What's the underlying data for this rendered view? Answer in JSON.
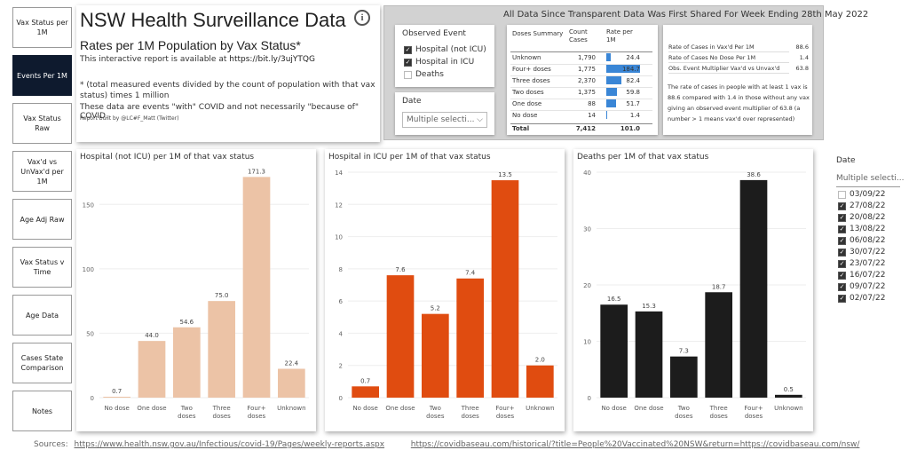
{
  "nav": [
    {
      "label": "Vax Status per 1M",
      "active": false
    },
    {
      "label": "Events Per 1M",
      "active": true
    },
    {
      "label": "Vax Status Raw",
      "active": false
    },
    {
      "label": "Vax'd vs UnVax'd per 1M",
      "active": false
    },
    {
      "label": "Age Adj Raw",
      "active": false
    },
    {
      "label": "Vax Status v Time",
      "active": false
    },
    {
      "label": "Age Data",
      "active": false
    },
    {
      "label": "Cases State Comparison",
      "active": false
    },
    {
      "label": "Notes",
      "active": false
    }
  ],
  "header": {
    "title": "NSW Health Surveillance Data",
    "info_icon": "i",
    "subtitle": "Rates per 1M Population by Vax Status*",
    "report_text": "This interactive report is available at",
    "report_link": "https://bit.ly/3ujYTQG",
    "note1": "* (total measured events divided by the count of population with that vax status) times 1 million",
    "note2": "These data are events \"with\" COVID and not necessarily \"because of\" COVID.",
    "credit": "Report built by @LC#F_Matt (Twitter)"
  },
  "summary": {
    "title": "All Data Since Transparent Data Was First Shared For Week Ending 28th May 2022",
    "event_slicer": {
      "label": "Observed Event",
      "options": [
        {
          "label": "Hospital (not ICU)",
          "checked": true
        },
        {
          "label": "Hospital in ICU",
          "checked": true
        },
        {
          "label": "Deaths",
          "checked": false
        }
      ]
    },
    "date_slicer": {
      "label": "Date",
      "value": "Multiple selecti...",
      "chevron": "⌵"
    },
    "doses_table": {
      "headers": [
        "Doses Summary",
        "Count Cases",
        "Rate per 1M"
      ],
      "rows": [
        {
          "label": "Unknown",
          "count": "1,790",
          "rate": "24.4",
          "rate_value": 24.4
        },
        {
          "label": "Four+ doses",
          "count": "1,775",
          "rate": "184.7",
          "rate_value": 184.7
        },
        {
          "label": "Three doses",
          "count": "2,370",
          "rate": "82.4",
          "rate_value": 82.4
        },
        {
          "label": "Two doses",
          "count": "1,375",
          "rate": "59.8",
          "rate_value": 59.8
        },
        {
          "label": "One dose",
          "count": "88",
          "rate": "51.7",
          "rate_value": 51.7
        },
        {
          "label": "No dose",
          "count": "14",
          "rate": "1.4",
          "rate_value": 1.4
        }
      ],
      "total": {
        "label": "Total",
        "count": "7,412",
        "rate": "101.0"
      }
    },
    "rates_table": {
      "rows": [
        {
          "label": "Rate of Cases in Vax'd Per 1M",
          "value": "88.6"
        },
        {
          "label": "Rate of Cases No Dose Per 1M",
          "value": "1.4"
        },
        {
          "label": "Obs. Event Multiplier Vax'd vs Unvax'd",
          "value": "63.8"
        }
      ],
      "text": "The rate of cases in people with at least 1 vax is 88.6 compared with 1.4 in those without any vax giving an observed event multiplier of 63.8 (a number > 1 means vax'd over represented)"
    }
  },
  "chart_data": [
    {
      "type": "bar",
      "title": "Hospital (not ICU) per 1M of that vax status",
      "categories": [
        "No dose",
        "One dose",
        "Two doses",
        "Three doses",
        "Four+ doses",
        "Unknown"
      ],
      "values": [
        0.7,
        44.0,
        54.6,
        75.0,
        171.3,
        22.4
      ],
      "labels": [
        "0.7",
        "44.0",
        "54.6",
        "75.0",
        "171.3",
        "22.4"
      ],
      "yticks": [
        0,
        50,
        100,
        150
      ],
      "ylim": [
        0,
        175
      ],
      "color": "#ecc3a6"
    },
    {
      "type": "bar",
      "title": "Hospital in ICU per 1M of that vax status",
      "categories": [
        "No dose",
        "One dose",
        "Two doses",
        "Three doses",
        "Four+ doses",
        "Unknown"
      ],
      "values": [
        0.7,
        7.6,
        5.2,
        7.4,
        13.5,
        2.0
      ],
      "labels": [
        "0.7",
        "7.6",
        "5.2",
        "7.4",
        "13.5",
        "2.0"
      ],
      "yticks": [
        0,
        2,
        4,
        6,
        8,
        10,
        12,
        14
      ],
      "ylim": [
        0,
        14
      ],
      "color": "#e04c10"
    },
    {
      "type": "bar",
      "title": "Deaths per 1M of that vax status",
      "categories": [
        "No dose",
        "One dose",
        "Two doses",
        "Three doses",
        "Four+ doses",
        "Unknown"
      ],
      "values": [
        16.5,
        15.3,
        7.3,
        18.7,
        38.6,
        0.5
      ],
      "labels": [
        "16.5",
        "15.3",
        "7.3",
        "18.7",
        "38.6",
        "0.5"
      ],
      "yticks": [
        0,
        10,
        20,
        30,
        40
      ],
      "ylim": [
        0,
        40
      ],
      "color": "#1c1c1c"
    }
  ],
  "date_filter": {
    "label": "Date",
    "value": "Multiple selecti...",
    "options": [
      {
        "label": "03/09/22",
        "checked": false
      },
      {
        "label": "27/08/22",
        "checked": true
      },
      {
        "label": "20/08/22",
        "checked": true
      },
      {
        "label": "13/08/22",
        "checked": true
      },
      {
        "label": "06/08/22",
        "checked": true
      },
      {
        "label": "30/07/22",
        "checked": true
      },
      {
        "label": "23/07/22",
        "checked": true
      },
      {
        "label": "16/07/22",
        "checked": true
      },
      {
        "label": "09/07/22",
        "checked": true
      },
      {
        "label": "02/07/22",
        "checked": true
      }
    ]
  },
  "sources": {
    "label": "Sources:",
    "link1": "https://www.health.nsw.gov.au/Infectious/covid-19/Pages/weekly-reports.aspx",
    "link2": "https://covidbaseau.com/historical/?title=People%20Vaccinated%20NSW&return=https://covidbaseau.com/nsw/"
  }
}
